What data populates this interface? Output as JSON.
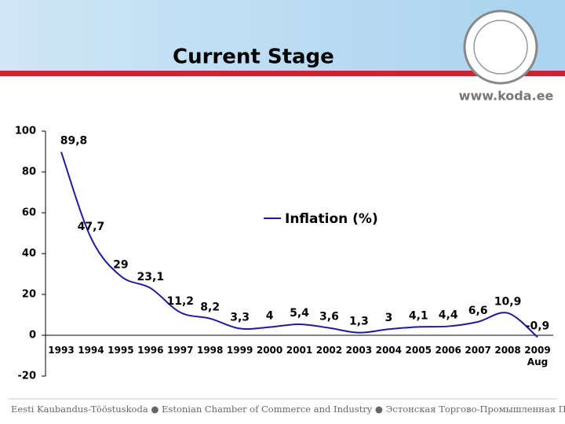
{
  "header": {
    "title": "Current Stage",
    "url": "www.koda.ee"
  },
  "footer": {
    "text": "Eesti Kaubandus-Tööstuskoda ● Estonian Chamber of Commerce and Industry ● Эстонская Торгово-Промышленная Палата"
  },
  "chart_data": {
    "type": "line",
    "categories": [
      "1993",
      "1994",
      "1995",
      "1996",
      "1997",
      "1998",
      "1999",
      "2000",
      "2001",
      "2002",
      "2003",
      "2004",
      "2005",
      "2006",
      "2007",
      "2008",
      "2009\nAug"
    ],
    "series": [
      {
        "name": "Inflation (%)",
        "color": "#1c1c9c",
        "values": [
          89.8,
          47.7,
          29,
          23.1,
          11.2,
          8.2,
          3.3,
          4,
          5.4,
          3.6,
          1.3,
          3,
          4.1,
          4.4,
          6.6,
          10.9,
          -0.9
        ],
        "value_labels": [
          "89,8",
          "47,7",
          "29",
          "23,1",
          "11,2",
          "8,2",
          "3,3",
          "4",
          "5,4",
          "3,6",
          "1,3",
          "3",
          "4,1",
          "4,4",
          "6,6",
          "10,9",
          "-0,9"
        ]
      }
    ],
    "ylim": [
      -20,
      100
    ],
    "yticks": [
      -20,
      0,
      20,
      40,
      60,
      80,
      100
    ],
    "legend": "top-right"
  }
}
